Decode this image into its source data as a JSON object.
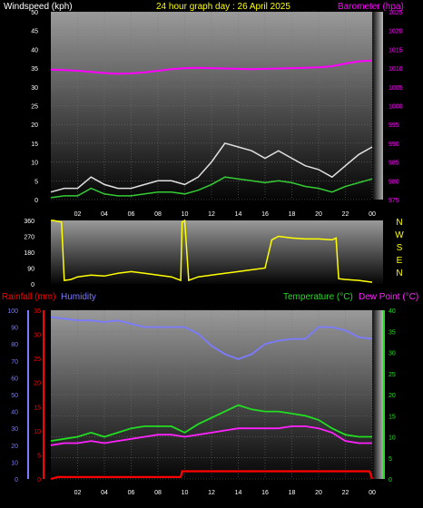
{
  "header": {
    "left_label": "Windspeed (kph)",
    "title": "24 hour graph day : 26 April 2025",
    "right_label": "Barometer (hpa)"
  },
  "colors": {
    "windspeed_label": "#ffffff",
    "title": "#ffff00",
    "barometer": "#ff00ff",
    "wind_gust": "#e0e0e0",
    "wind_avg": "#33cc33",
    "wind_dir": "#ffff00",
    "rainfall": "#ff0000",
    "humidity": "#7b7bff",
    "temperature": "#22dd22",
    "dew_point": "#ff22ff"
  },
  "chart_data": [
    {
      "type": "line",
      "name": "wind-barometer",
      "y_left": {
        "label": "Windspeed (kph)",
        "ylim": [
          0,
          50
        ],
        "ticks": [
          0,
          5,
          10,
          15,
          20,
          25,
          30,
          35,
          40,
          45,
          50
        ]
      },
      "y_right": {
        "label": "Barometer (hpa)",
        "ylim": [
          975,
          1025
        ],
        "ticks": [
          975,
          980,
          985,
          990,
          995,
          1000,
          1005,
          1010,
          1015,
          1020,
          1025
        ]
      },
      "x_ticks": [
        "02",
        "04",
        "06",
        "08",
        "10",
        "12",
        "14",
        "16",
        "18",
        "20",
        "22",
        "00"
      ],
      "x_range_hours": [
        0,
        24
      ],
      "grid": true,
      "series": [
        {
          "key": "barometer",
          "axis": "right",
          "x": [
            0,
            1,
            2,
            3,
            4,
            5,
            6,
            7,
            8,
            9,
            10,
            11,
            12,
            13,
            14,
            15,
            16,
            17,
            18,
            19,
            20,
            21,
            22,
            23,
            24
          ],
          "y": [
            1009.6,
            1009.5,
            1009.3,
            1009,
            1008.7,
            1008.5,
            1008.6,
            1008.9,
            1009.3,
            1009.7,
            1010,
            1010.1,
            1010,
            1009.9,
            1009.8,
            1009.7,
            1009.8,
            1009.9,
            1010,
            1010.1,
            1010.2,
            1010.5,
            1011.2,
            1011.8,
            1012
          ]
        },
        {
          "key": "wind_gust",
          "axis": "left",
          "x": [
            0,
            1,
            2,
            3,
            4,
            5,
            6,
            7,
            8,
            9,
            10,
            11,
            12,
            13,
            14,
            15,
            16,
            17,
            18,
            19,
            20,
            21,
            22,
            23,
            24
          ],
          "y": [
            2,
            3,
            3,
            6,
            4,
            3,
            3,
            4,
            5,
            5,
            4,
            6,
            10,
            15,
            14,
            13,
            11,
            13,
            11,
            9,
            8,
            6,
            9,
            12,
            14
          ]
        },
        {
          "key": "wind_avg",
          "axis": "left",
          "x": [
            0,
            1,
            2,
            3,
            4,
            5,
            6,
            7,
            8,
            9,
            10,
            11,
            12,
            13,
            14,
            15,
            16,
            17,
            18,
            19,
            20,
            21,
            22,
            23,
            24
          ],
          "y": [
            0.5,
            1,
            1,
            3,
            1.5,
            1,
            1,
            1.5,
            2,
            2,
            1.5,
            2.5,
            4,
            6,
            5.5,
            5,
            4.5,
            5,
            4.5,
            3.5,
            3,
            2,
            3.5,
            4.5,
            5.5
          ]
        }
      ]
    },
    {
      "type": "line",
      "name": "wind-direction",
      "y_left": {
        "ylim": [
          0,
          360
        ],
        "ticks": [
          0,
          45,
          90,
          135,
          180,
          225,
          270,
          315,
          360
        ]
      },
      "y_right_labels": [
        "N",
        "W",
        "S",
        "E",
        "N"
      ],
      "x_range_hours": [
        0,
        24
      ],
      "series": [
        {
          "key": "wind_dir",
          "x": [
            0,
            0.2,
            0.8,
            1,
            1.5,
            2,
            3,
            4,
            5,
            6,
            7,
            8,
            9,
            9.7,
            9.8,
            10,
            10.3,
            11,
            12,
            13,
            14,
            15,
            16,
            16.5,
            17,
            18,
            19,
            20,
            21,
            21.3,
            21.5,
            22,
            23,
            24
          ],
          "y": [
            360,
            360,
            350,
            20,
            25,
            40,
            50,
            45,
            60,
            70,
            60,
            50,
            40,
            20,
            350,
            360,
            20,
            40,
            50,
            60,
            70,
            80,
            90,
            250,
            270,
            260,
            255,
            255,
            250,
            260,
            30,
            25,
            20,
            10
          ]
        }
      ]
    },
    {
      "type": "line",
      "name": "rain-humidity-temperature",
      "y_left_humidity": {
        "label": "Humidity",
        "ylim": [
          0,
          100
        ],
        "ticks": [
          0,
          10,
          20,
          30,
          40,
          50,
          60,
          70,
          80,
          90,
          100
        ]
      },
      "y_left_rain": {
        "label": "Rainfall (mm)",
        "ylim": [
          0,
          35
        ],
        "ticks": [
          0,
          5,
          10,
          15,
          20,
          25,
          30,
          35
        ]
      },
      "y_right": {
        "label": "Temperature (°C)",
        "ylim": [
          0,
          40
        ],
        "ticks": [
          0,
          5,
          10,
          15,
          20,
          25,
          30,
          35,
          40
        ]
      },
      "x_ticks": [
        "02",
        "04",
        "06",
        "08",
        "10",
        "12",
        "14",
        "16",
        "18",
        "20",
        "22",
        "00"
      ],
      "x_range_hours": [
        0,
        24
      ],
      "series": [
        {
          "key": "humidity",
          "axis": "humidity",
          "x": [
            0,
            1,
            2,
            3,
            4,
            5,
            6,
            7,
            8,
            9,
            10,
            11,
            12,
            13,
            14,
            15,
            16,
            17,
            18,
            19,
            20,
            21,
            22,
            23,
            24
          ],
          "y": [
            96,
            95,
            94,
            94,
            93,
            94,
            92,
            90,
            90,
            90,
            90,
            86,
            79,
            74,
            71,
            74,
            80,
            82,
            83,
            83,
            90,
            90,
            88,
            84,
            83
          ]
        },
        {
          "key": "temperature",
          "axis": "right",
          "x": [
            0,
            1,
            2,
            3,
            4,
            5,
            6,
            7,
            8,
            9,
            10,
            11,
            12,
            13,
            14,
            15,
            16,
            17,
            18,
            19,
            20,
            21,
            22,
            23,
            24
          ],
          "y": [
            9,
            9.5,
            10,
            11,
            10,
            11,
            12,
            12.5,
            12.5,
            12.5,
            11,
            13,
            14.5,
            16,
            17.5,
            16.5,
            16,
            16,
            15.5,
            15,
            14,
            12,
            10.5,
            10,
            10
          ]
        },
        {
          "key": "dew_point",
          "axis": "right",
          "x": [
            0,
            1,
            2,
            3,
            4,
            5,
            6,
            7,
            8,
            9,
            10,
            11,
            12,
            13,
            14,
            15,
            16,
            17,
            18,
            19,
            20,
            21,
            22,
            23,
            24
          ],
          "y": [
            8,
            8.5,
            8.5,
            9,
            8.5,
            9,
            9.5,
            10,
            10.5,
            10.5,
            10,
            10.5,
            11,
            11.5,
            12,
            12,
            12,
            12,
            12.5,
            12.5,
            12,
            11,
            9,
            8.5,
            8.5
          ]
        },
        {
          "key": "rainfall",
          "axis": "rain",
          "x": [
            0,
            0.5,
            6.7,
            6.8,
            9.7,
            9.8,
            23.8,
            24
          ],
          "y": [
            0,
            0.4,
            0.4,
            0.4,
            0.4,
            1.6,
            1.6,
            0
          ]
        }
      ]
    }
  ],
  "lower_header": {
    "rainfall_label": "Rainfall (mm)",
    "humidity_label": "Humidity",
    "temperature_label": "Temperature (°C)",
    "dewpoint_label": "Dew Point (°C)"
  }
}
